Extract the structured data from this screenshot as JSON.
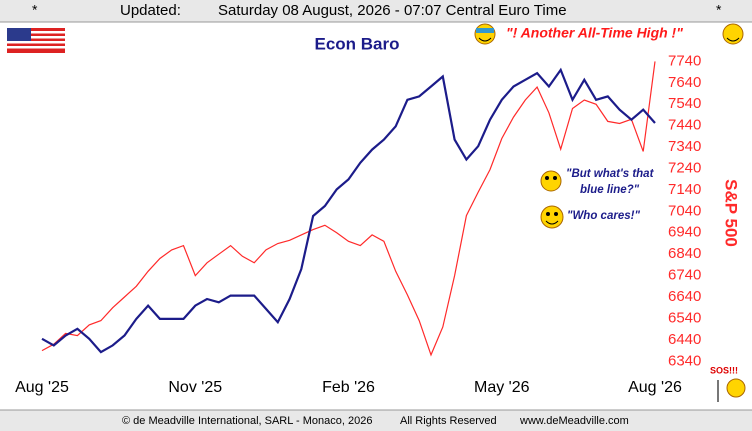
{
  "header": {
    "star_left": "*",
    "updated_label": "Updated:",
    "timestamp": "Saturday 08 August, 2026 - 07:07 Central Euro Time",
    "star_right": "*"
  },
  "footer": {
    "copyright": "© de Meadville International, SARL - Monaco, 2026",
    "rights": "All Rights Reserved",
    "website": "www.deMeadville.com"
  },
  "chart_data": {
    "type": "line",
    "annotations": [
      "\"! Another All-Time High !\"",
      "\"But what's that",
      "blue line?\"",
      "\"Who cares!\"",
      "SOS!!!"
    ],
    "x": [
      0,
      1,
      2,
      3,
      4,
      5,
      6,
      7,
      8,
      9,
      10,
      11,
      12,
      13,
      14,
      15,
      16,
      17,
      18,
      19,
      20,
      21,
      22,
      23,
      24,
      25,
      26,
      27,
      28,
      29,
      30,
      31,
      32,
      33,
      34,
      35,
      36,
      37,
      38,
      39,
      40,
      41,
      42,
      43,
      44,
      45,
      46,
      47,
      48,
      49,
      50,
      51,
      52
    ],
    "xlim": [
      0,
      52
    ],
    "xticks": [
      {
        "value": 0,
        "label": "Aug '25"
      },
      {
        "value": 13,
        "label": "Nov '25"
      },
      {
        "value": 26,
        "label": "Feb '26"
      },
      {
        "value": 39,
        "label": "May '26"
      },
      {
        "value": 52,
        "label": "Aug '26"
      }
    ],
    "ylim": [
      0,
      100
    ],
    "y2lim": [
      6290,
      7840
    ],
    "y2ticks": [
      6340,
      6440,
      6540,
      6640,
      6740,
      6840,
      6940,
      7040,
      7140,
      7240,
      7340,
      7440,
      7540,
      7640,
      7740
    ],
    "series": [
      {
        "name": "Econ Baro",
        "color": "#1c1c8a",
        "axis": "y",
        "values": [
          10,
          8,
          11,
          13,
          10,
          6,
          8,
          11,
          16,
          20,
          16,
          16,
          16,
          20,
          22,
          21,
          23,
          23,
          23,
          19,
          15,
          22,
          31,
          47,
          50,
          55,
          58,
          63,
          67,
          70,
          74,
          82,
          83,
          86,
          89,
          70,
          64,
          68,
          76,
          82,
          86,
          88,
          90,
          86,
          91,
          82,
          88,
          82,
          83,
          79,
          76,
          79,
          75
        ]
      },
      {
        "name": "S&P 500",
        "color": "#ff2a2a",
        "axis": "y2",
        "values": [
          6390,
          6420,
          6470,
          6460,
          6510,
          6530,
          6590,
          6640,
          6690,
          6760,
          6820,
          6860,
          6880,
          6740,
          6800,
          6840,
          6880,
          6830,
          6800,
          6860,
          6890,
          6905,
          6930,
          6955,
          6975,
          6940,
          6900,
          6880,
          6930,
          6900,
          6760,
          6650,
          6530,
          6370,
          6500,
          6740,
          7020,
          7130,
          7235,
          7380,
          7480,
          7560,
          7620,
          7500,
          7330,
          7520,
          7560,
          7540,
          7460,
          7450,
          7470,
          7320,
          7740
        ]
      }
    ]
  }
}
